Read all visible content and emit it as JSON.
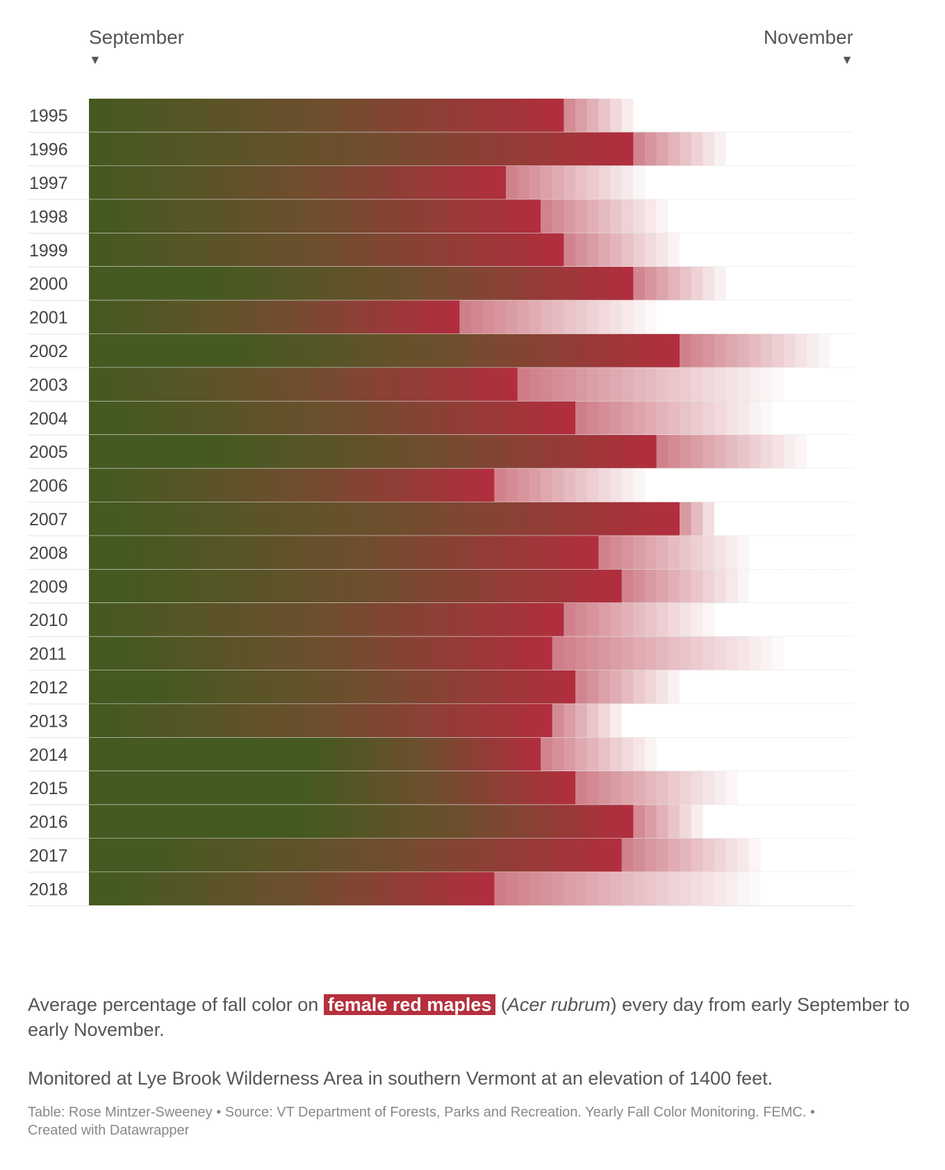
{
  "header": {
    "start_month": "September",
    "end_month": "November",
    "arrow_glyph": "▼"
  },
  "chart_data": {
    "type": "heatmap",
    "description_axis": "days from early September to early November",
    "x_start": "September",
    "x_end": "November",
    "days": 66,
    "colors": {
      "green": "#455a20",
      "brown": "#6f4e2e",
      "red": "#b12e3e",
      "white": "#ffffff"
    },
    "rows": [
      {
        "year": "1995",
        "green_until": 0,
        "red_peak_day": 40,
        "fade_end_day": 47
      },
      {
        "year": "1996",
        "green_until": 0,
        "red_peak_day": 46,
        "fade_end_day": 55
      },
      {
        "year": "1997",
        "green_until": 0,
        "red_peak_day": 35,
        "fade_end_day": 48
      },
      {
        "year": "1998",
        "green_until": 1,
        "red_peak_day": 38,
        "fade_end_day": 50
      },
      {
        "year": "1999",
        "green_until": 0,
        "red_peak_day": 40,
        "fade_end_day": 51
      },
      {
        "year": "2000",
        "green_until": 10,
        "red_peak_day": 46,
        "fade_end_day": 55
      },
      {
        "year": "2001",
        "green_until": 0,
        "red_peak_day": 31,
        "fade_end_day": 49
      },
      {
        "year": "2002",
        "green_until": 12,
        "red_peak_day": 50,
        "fade_end_day": 64
      },
      {
        "year": "2003",
        "green_until": 0,
        "red_peak_day": 36,
        "fade_end_day": 60
      },
      {
        "year": "2004",
        "green_until": 2,
        "red_peak_day": 41,
        "fade_end_day": 59
      },
      {
        "year": "2005",
        "green_until": 10,
        "red_peak_day": 48,
        "fade_end_day": 62
      },
      {
        "year": "2006",
        "green_until": 1,
        "red_peak_day": 34,
        "fade_end_day": 48
      },
      {
        "year": "2007",
        "green_until": 2,
        "red_peak_day": 50,
        "fade_end_day": 54
      },
      {
        "year": "2008",
        "green_until": 3,
        "red_peak_day": 43,
        "fade_end_day": 57
      },
      {
        "year": "2009",
        "green_until": 3,
        "red_peak_day": 45,
        "fade_end_day": 57
      },
      {
        "year": "2010",
        "green_until": 0,
        "red_peak_day": 40,
        "fade_end_day": 54
      },
      {
        "year": "2011",
        "green_until": 2,
        "red_peak_day": 39,
        "fade_end_day": 60
      },
      {
        "year": "2012",
        "green_until": 5,
        "red_peak_day": 41,
        "fade_end_day": 51
      },
      {
        "year": "2013",
        "green_until": 1,
        "red_peak_day": 39,
        "fade_end_day": 46
      },
      {
        "year": "2014",
        "green_until": 19,
        "red_peak_day": 38,
        "fade_end_day": 49
      },
      {
        "year": "2015",
        "green_until": 18,
        "red_peak_day": 41,
        "fade_end_day": 56
      },
      {
        "year": "2016",
        "green_until": 18,
        "red_peak_day": 46,
        "fade_end_day": 53
      },
      {
        "year": "2017",
        "green_until": 5,
        "red_peak_day": 45,
        "fade_end_day": 58
      },
      {
        "year": "2018",
        "green_until": 2,
        "red_peak_day": 34,
        "fade_end_day": 58
      }
    ]
  },
  "caption": {
    "before": "Average percentage of fall color on ",
    "highlight": "female red maples",
    "middle_open": " (",
    "species": "Acer rubrum",
    "after": ") every day from early September to early November.",
    "note": "Monitored at Lye Brook Wilderness Area in southern Vermont at an elevation of 1400 feet."
  },
  "footer": {
    "text": "Table: Rose Mintzer-Sweeney • Source: VT Department of Forests, Parks and Recreation. Yearly Fall Color Monitoring. FEMC. • Created with Datawrapper"
  }
}
